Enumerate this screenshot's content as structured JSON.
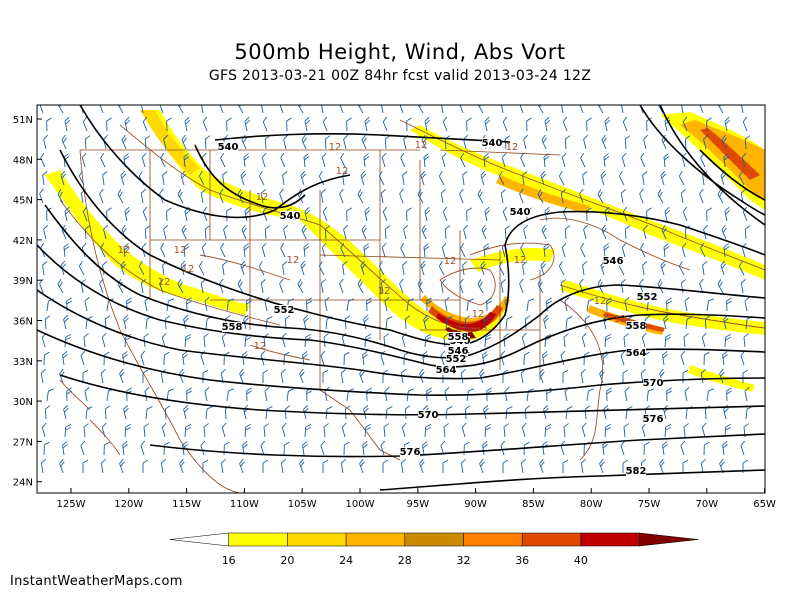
{
  "title": "500mb Height, Wind, Abs Vort",
  "subtitle": "GFS 2013-03-21 00Z 84hr fcst valid 2013-03-24 12Z",
  "footer": "InstantWeatherMaps.com",
  "lat_labels": [
    "51N",
    "48N",
    "45N",
    "42N",
    "39N",
    "36N",
    "33N",
    "30N",
    "27N",
    "24N"
  ],
  "lon_labels": [
    "125W",
    "120W",
    "115W",
    "110W",
    "105W",
    "100W",
    "95W",
    "90W",
    "85W",
    "80W",
    "75W",
    "70W",
    "65W"
  ],
  "contour_labels": [
    "540",
    "540",
    "540",
    "540",
    "546",
    "552",
    "552",
    "558",
    "558",
    "564",
    "564",
    "570",
    "570",
    "576",
    "576",
    "582",
    "540",
    "546",
    "552",
    "558",
    "12",
    "12",
    "12",
    "12",
    "12",
    "12",
    "12",
    "12",
    "12",
    "12",
    "12",
    "12",
    "12",
    "12",
    "12",
    "12",
    "12"
  ],
  "colorbar": {
    "ticks": [
      "16",
      "20",
      "24",
      "28",
      "32",
      "36",
      "40"
    ],
    "colors": [
      "#ffff00",
      "#ffd800",
      "#ffb400",
      "#cc8a00",
      "#ff7f00",
      "#e04a00",
      "#c00000",
      "#800000"
    ]
  },
  "colors": {
    "height_contour": "#000000",
    "vort_contour": "#a0522d",
    "wind_barb": "#1f5f9f",
    "borders": "#8b4513"
  }
}
